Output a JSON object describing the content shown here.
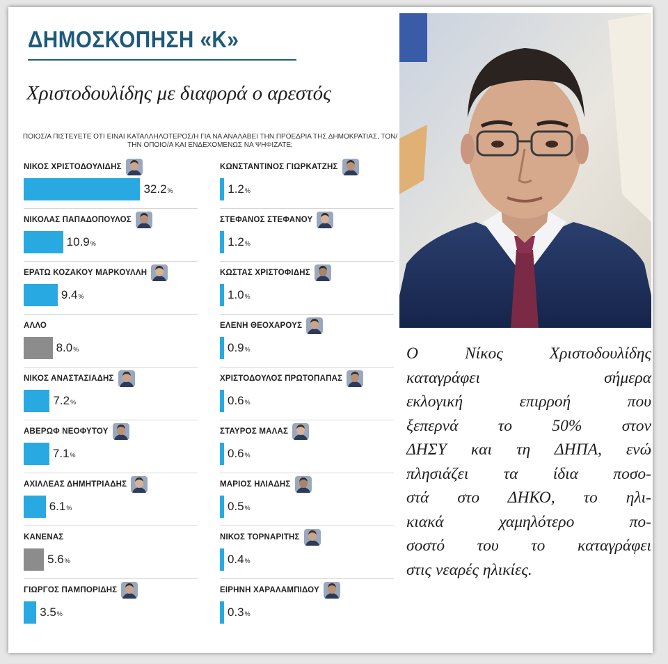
{
  "header": {
    "poll_label": "ΔΗΜΟΣΚΟΠΗΣΗ «Κ»",
    "headline": "Χριστοδουλίδης με διαφορά ο αρεστός",
    "question": "ΠΟΙΟΣ/Α ΠΙΣΤΕΥΕΤΕ ΟΤΙ ΕΙΝΑΙ ΚΑΤΑΛΛΗΛΟΤΕΡΟΣ/Η ΓΙΑ ΝΑ ΑΝΑΛΑΒΕΙ ΤΗΝ ΠΡΟΕΔΡΙΑ ΤΗΣ ΔΗΜΟΚΡΑΤΙΑΣ, ΤΟΝ/ΤΗΝ ΟΠΟΙΟ/Α ΚΑΙ ΕΝΔΕΧΟΜΕΝΩΣ ΝΑ ΨΗΦΙΖΑΤΕ;"
  },
  "chart_data": {
    "type": "bar",
    "orientation": "horizontal",
    "unit": "%",
    "title": "Χριστοδουλίδης με διαφορά ο αρεστός",
    "categories": [
      "ΝΙΚΟΣ ΧΡΙΣΤΟΔΟΥΛΙΔΗΣ",
      "ΝΙΚΟΛΑΣ ΠΑΠΑΔΟΠΟΥΛΟΣ",
      "ΕΡΑΤΩ ΚΟΖΑΚΟΥ ΜΑΡΚΟΥΛΛΗ",
      "ΑΛΛΟ",
      "ΝΙΚΟΣ ΑΝΑΣΤΑΣΙΑΔΗΣ",
      "ΑΒΕΡΩΦ ΝΕΟΦΥΤΟΥ",
      "ΑΧΙΛΛΕΑΣ ΔΗΜΗΤΡΙΑΔΗΣ",
      "ΚΑΝΕΝΑΣ",
      "ΓΙΩΡΓΟΣ ΠΑΜΠΟΡΙΔΗΣ",
      "ΚΩΝΣΤΑΝΤΙΝΟΣ ΓΙΩΡΚΑΤΖΗΣ",
      "ΣΤΕΦΑΝΟΣ ΣΤΕΦΑΝΟΥ",
      "ΚΩΣΤΑΣ ΧΡΙΣΤΟΦΙΔΗΣ",
      "ΕΛΕΝΗ ΘΕΟΧΑΡΟΥΣ",
      "ΧΡΙΣΤΟΔΟΥΛΟΣ ΠΡΩΤΟΠΑΠΑΣ",
      "ΣΤΑΥΡΟΣ ΜΑΛΑΣ",
      "ΜΑΡΙΟΣ ΗΛΙΑΔΗΣ",
      "ΝΙΚΟΣ ΤΟΡΝΑΡΙΤΗΣ",
      "ΕΙΡΗΝΗ ΧΑΡΑΛΑΜΠΙΔΟΥ"
    ],
    "values": [
      32.2,
      10.9,
      9.4,
      8.0,
      7.2,
      7.1,
      6.1,
      5.6,
      3.5,
      1.2,
      1.2,
      1.0,
      0.9,
      0.6,
      0.6,
      0.5,
      0.4,
      0.3
    ],
    "labels": [
      "32.2",
      "10.9",
      "9.4",
      "8.0",
      "7.2",
      "7.1",
      "6.1",
      "5.6",
      "3.5",
      "1.2",
      "1.2",
      "1.0",
      "0.9",
      "0.6",
      "0.6",
      "0.5",
      "0.4",
      "0.3"
    ],
    "bar_kind": [
      "person",
      "person",
      "person",
      "other",
      "person",
      "person",
      "person",
      "other",
      "person",
      "person",
      "person",
      "person",
      "person",
      "person",
      "person",
      "person",
      "person",
      "person"
    ],
    "colors": {
      "person": "#29a9e1",
      "other": "#8c8c8c"
    },
    "grid": false,
    "legend": "none"
  },
  "caption": {
    "lines": [
      "Ο Νίκος Χριστοδουλίδης",
      "καταγράφει σήμερα",
      "εκλογική επιρροή που",
      "ξεπερνά το 50% στον",
      "ΔΗΣΥ και τη ΔΗΠΑ, ενώ",
      "πλησιάζει τα ίδια ποσο-",
      "στά στο ΔΗΚΟ, το ηλι-",
      "κιακά χαμηλότερο πο-",
      "σοστό του το καταγράφει",
      "στις νεαρές ηλικίες."
    ]
  },
  "colors": {
    "title": "#1d5a7a",
    "bar": "#29a9e1",
    "bar_other": "#8c8c8c",
    "background": "#ffffff"
  },
  "icons": {
    "face": "portrait-thumbnail",
    "photo": "portrait-photo"
  }
}
